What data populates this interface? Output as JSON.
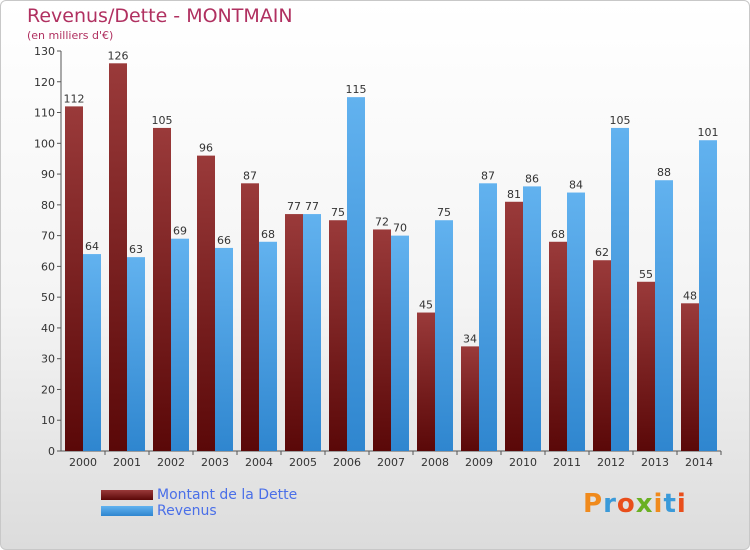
{
  "header": {
    "title": "Revenus/Dette - MONTMAIN",
    "subtitle": "(en milliers d'€)"
  },
  "logo": {
    "text": "Proxiti",
    "colors": [
      "#f08a1c",
      "#3a9ad9",
      "#e94e1b",
      "#6ab023",
      "#f08a1c",
      "#3a9ad9",
      "#e94e1b"
    ]
  },
  "chart_data": {
    "type": "bar",
    "title": "Revenus/Dette - MONTMAIN",
    "subtitle": "(en milliers d'€)",
    "xlabel": "",
    "ylabel": "",
    "ylim": [
      0,
      130
    ],
    "ytick_step": 10,
    "grid": false,
    "legend_position": "bottom-left",
    "categories": [
      "2000",
      "2001",
      "2002",
      "2003",
      "2004",
      "2005",
      "2006",
      "2007",
      "2008",
      "2009",
      "2010",
      "2011",
      "2012",
      "2013",
      "2014"
    ],
    "series": [
      {
        "name": "Montant de la Dette",
        "color": "#7a1f1f",
        "values": [
          112,
          126,
          105,
          96,
          87,
          77,
          75,
          72,
          45,
          34,
          81,
          68,
          62,
          55,
          48
        ]
      },
      {
        "name": "Revenus",
        "color": "#4fa3e6",
        "values": [
          64,
          63,
          69,
          66,
          68,
          77,
          115,
          70,
          75,
          87,
          86,
          84,
          105,
          88,
          101
        ]
      }
    ]
  }
}
